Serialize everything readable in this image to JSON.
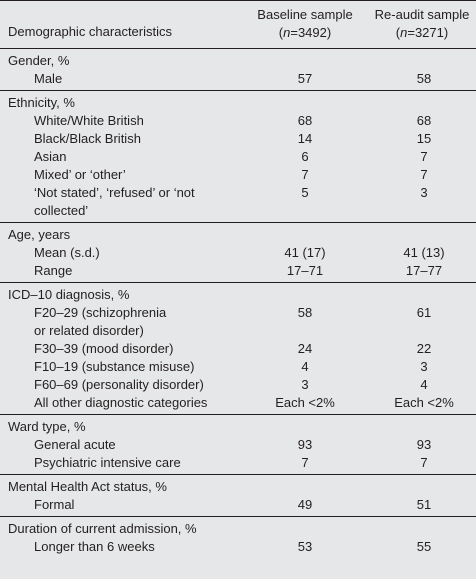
{
  "header": {
    "title": "Demographic characteristics",
    "col1_name": "Baseline sample",
    "col1_n_prefix": "(",
    "col1_n_italic": "n",
    "col1_n_value": "=3492)",
    "col2_name": "Re-audit sample",
    "col2_n_prefix": "(",
    "col2_n_italic": "n",
    "col2_n_value": "=3271)"
  },
  "sections": [
    {
      "title": "Gender, %",
      "rows": [
        {
          "label": "Male",
          "baseline": "57",
          "reaudit": "58"
        }
      ]
    },
    {
      "title": "Ethnicity, %",
      "rows": [
        {
          "label": "White/White British",
          "baseline": "68",
          "reaudit": "68"
        },
        {
          "label": "Black/Black British",
          "baseline": "14",
          "reaudit": "15"
        },
        {
          "label": "Asian",
          "baseline": "6",
          "reaudit": "7"
        },
        {
          "label": "Mixed’ or ‘other’",
          "baseline": "7",
          "reaudit": "7"
        },
        {
          "label": "‘Not stated’, ‘refused’ or ‘not",
          "label2": "collected’",
          "baseline": "5",
          "reaudit": "3"
        }
      ]
    },
    {
      "title": "Age, years",
      "rows": [
        {
          "label": "Mean (s.d.)",
          "baseline": "41 (17)",
          "reaudit": "41 (13)"
        },
        {
          "label": "Range",
          "baseline": "17–71",
          "reaudit": "17–77"
        }
      ]
    },
    {
      "title": "ICD–10 diagnosis, %",
      "rows": [
        {
          "label": "F20–29 (schizophrenia",
          "label2": "or related disorder)",
          "baseline": "58",
          "reaudit": "61"
        },
        {
          "label": "F30–39 (mood disorder)",
          "baseline": "24",
          "reaudit": "22"
        },
        {
          "label": "F10–19 (substance misuse)",
          "baseline": "4",
          "reaudit": "3"
        },
        {
          "label": "F60–69 (personality disorder)",
          "baseline": "3",
          "reaudit": "4"
        },
        {
          "label": "All other diagnostic categories",
          "baseline": "Each <2%",
          "reaudit": "Each <2%"
        }
      ]
    },
    {
      "title": "Ward type, %",
      "rows": [
        {
          "label": "General acute",
          "baseline": "93",
          "reaudit": "93"
        },
        {
          "label": "Psychiatric intensive care",
          "baseline": "7",
          "reaudit": "7"
        }
      ]
    },
    {
      "title": "Mental Health Act status, %",
      "rows": [
        {
          "label": "Formal",
          "baseline": "49",
          "reaudit": "51"
        }
      ]
    },
    {
      "title": "Duration of current admission, %",
      "rows": [
        {
          "label": "Longer than 6 weeks",
          "baseline": "53",
          "reaudit": "55"
        }
      ]
    }
  ]
}
